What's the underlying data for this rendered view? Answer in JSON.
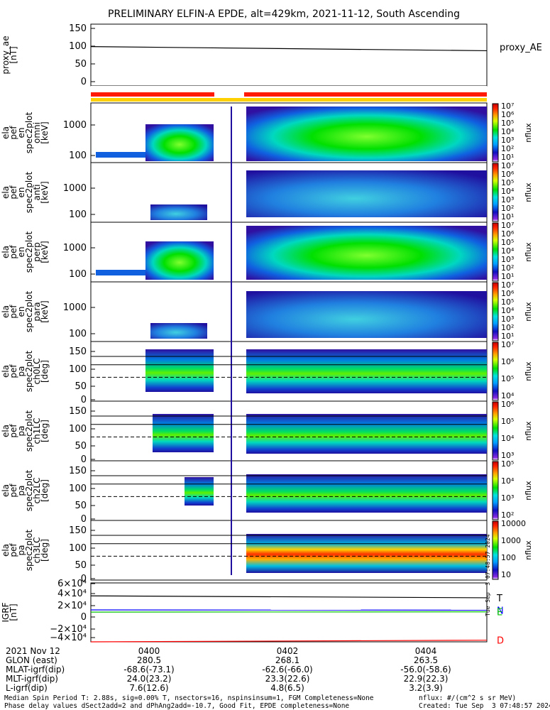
{
  "title": "PRELIMINARY ELFIN-A EPDE, alt=429km, 2021-11-12, South Ascending",
  "chart_data": [
    {
      "type": "line",
      "panel": "proxy_ae",
      "ylabel_lines": [
        "proxy_ae",
        "[nT]"
      ],
      "yticks": [
        "150",
        "100",
        "50",
        "0"
      ],
      "ylim": [
        -10,
        155
      ],
      "legend": "proxy_AE",
      "x": [
        "0359",
        "0405"
      ],
      "series": [
        {
          "values": [
            95,
            84
          ]
        }
      ]
    },
    {
      "type": "heatmap",
      "panel": "pef_spec2plot_omni",
      "ylabel_lines": [
        "ela",
        "pef",
        "en",
        "spec2plot",
        "omni",
        "[keV]"
      ],
      "yticks": [
        "1000",
        "100"
      ],
      "colorbar": {
        "label": "nflux",
        "ticks": [
          "10⁷",
          "10⁶",
          "10⁵",
          "10⁴",
          "10³",
          "10²",
          "10¹"
        ]
      }
    },
    {
      "type": "heatmap",
      "panel": "pef_spec2plot_anti",
      "ylabel_lines": [
        "ela",
        "pef",
        "en",
        "spec2plot",
        "anti",
        "[keV]"
      ],
      "yticks": [
        "1000",
        "100"
      ],
      "colorbar": {
        "label": "nflux",
        "ticks": [
          "10⁷",
          "10⁶",
          "10⁵",
          "10⁴",
          "10³",
          "10²",
          "10¹"
        ]
      }
    },
    {
      "type": "heatmap",
      "panel": "pef_spec2plot_perp",
      "ylabel_lines": [
        "ela",
        "pef",
        "en",
        "spec2plot",
        "perp",
        "[keV]"
      ],
      "yticks": [
        "1000",
        "100"
      ],
      "colorbar": {
        "label": "nflux",
        "ticks": [
          "10⁷",
          "10⁶",
          "10⁵",
          "10⁴",
          "10³",
          "10²",
          "10¹"
        ]
      }
    },
    {
      "type": "heatmap",
      "panel": "pef_spec2plot_para",
      "ylabel_lines": [
        "ela",
        "pef",
        "en",
        "spec2plot",
        "para",
        "[keV]"
      ],
      "yticks": [
        "1000",
        "100"
      ],
      "colorbar": {
        "label": "nflux",
        "ticks": [
          "10⁷",
          "10⁶",
          "10⁵",
          "10⁴",
          "10³",
          "10²",
          "10¹"
        ]
      }
    },
    {
      "type": "heatmap",
      "panel": "pef_pa_ch0LC",
      "ylabel_lines": [
        "ela",
        "pef",
        "pa",
        "spec2plot",
        "ch0LC",
        "[deg]"
      ],
      "yticks": [
        "150",
        "100",
        "50",
        "0"
      ],
      "colorbar": {
        "label": "nflux",
        "ticks": [
          "10⁷",
          "10⁶",
          "10⁵",
          "10⁴"
        ]
      }
    },
    {
      "type": "heatmap",
      "panel": "pef_pa_ch1LC",
      "ylabel_lines": [
        "ela",
        "pef",
        "pa",
        "spec2plot",
        "ch1LC",
        "[deg]"
      ],
      "yticks": [
        "150",
        "100",
        "50",
        "0"
      ],
      "colorbar": {
        "label": "nflux",
        "ticks": [
          "10⁶",
          "10⁵",
          "10⁴",
          "10³"
        ]
      }
    },
    {
      "type": "heatmap",
      "panel": "pef_pa_ch2LC",
      "ylabel_lines": [
        "ela",
        "pef",
        "pa",
        "spec2plot",
        "ch2LC",
        "[deg]"
      ],
      "yticks": [
        "150",
        "100",
        "50",
        "0"
      ],
      "colorbar": {
        "label": "nflux",
        "ticks": [
          "10⁵",
          "10⁴",
          "10³",
          "10²"
        ]
      }
    },
    {
      "type": "heatmap",
      "panel": "pef_pa_ch3LC",
      "ylabel_lines": [
        "ela",
        "pef",
        "pa",
        "spec2plot",
        "ch3LC",
        "[deg]"
      ],
      "yticks": [
        "150",
        "100",
        "50",
        "0"
      ],
      "colorbar": {
        "label": "nflux",
        "ticks": [
          "10000",
          "1000",
          "100",
          "10"
        ]
      }
    },
    {
      "type": "line",
      "panel": "igrf",
      "ylabel_lines": [
        "IGRF",
        "[nT]"
      ],
      "yticks": [
        "6×10⁴",
        "4×10⁴",
        "2×10⁴",
        "0",
        "−2×10⁴",
        "−4×10⁴"
      ],
      "ylim": [
        -45000,
        62000
      ],
      "x": [
        "0359",
        "0405"
      ],
      "series": [
        {
          "name": "T",
          "color": "#000000",
          "values": [
            38500,
            35000
          ]
        },
        {
          "name": "N",
          "color": "#0000ff",
          "values": [
            13000,
            12500
          ]
        },
        {
          "name": "E",
          "color": "#00c000",
          "values": [
            9000,
            9500
          ]
        },
        {
          "name": "D",
          "color": "#ff0000",
          "values": [
            -45000,
            -42000
          ]
        }
      ]
    }
  ],
  "side_stamp": "Tue Sep  3 07:48:57 2024",
  "axis_table": {
    "rows": [
      {
        "label": "2021 Nov 12",
        "values": [
          "0400",
          "0402",
          "0404"
        ]
      },
      {
        "label": "GLON (east)",
        "values": [
          "280.5",
          "268.1",
          "263.5"
        ]
      },
      {
        "label": "MLAT-igrf(dip)",
        "values": [
          "-68.6(-73.1)",
          "-62.6(-66.0)",
          "-56.0(-58.6)"
        ]
      },
      {
        "label": "MLT-igrf(dip)",
        "values": [
          "24.0(23.2)",
          "23.3(22.6)",
          "22.9(22.3)"
        ]
      },
      {
        "label": "L-igrf(dip)",
        "values": [
          "7.6(12.6)",
          "4.8(6.5)",
          "3.2(3.9)"
        ]
      }
    ]
  },
  "footer": {
    "line1": "Median Spin Period T: 2.88s, sig=0.00% T, nsectors=16, nspinsinsum=1, FGM Completeness=None",
    "line2": "Phase delay values dSect2add=2 and dPhAng2add=-10.7, Good Fit, EPDE completeness=None",
    "units": "nflux: #/(cm^2 s sr MeV)",
    "created": "Created: Tue Sep  3 07:48:57 2024"
  },
  "colors": {
    "bar_red": "#ff1a00",
    "bar_yellow": "#ffd000",
    "bar_blue": "#1a8cff",
    "series_T": "#000000",
    "series_N": "#0000ff",
    "series_E": "#00c000",
    "series_D": "#ff0000"
  }
}
